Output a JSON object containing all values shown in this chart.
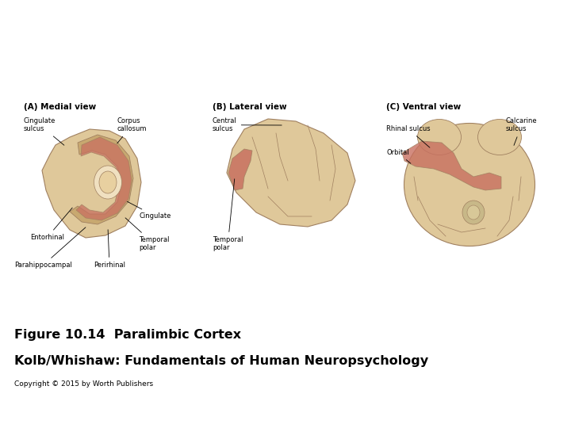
{
  "figure_title": "Figure 10.14  Paralimbic Cortex",
  "author_line": "Kolb/Whishaw: Fundamentals of Human Neuropsychology",
  "copyright_line": "Copyright © 2015 by Worth Publishers",
  "background_color": "#ffffff",
  "title_fontsize": 11.5,
  "author_fontsize": 11.5,
  "copyright_fontsize": 6.5,
  "panel_A_title": "(A) Medial view",
  "panel_B_title": "(B) Lateral view",
  "panel_C_title": "(C) Ventral view",
  "brain_color": "#dfc89a",
  "brain_edge": "#a08060",
  "inner_color": "#c8a870",
  "red_color": "#c87060",
  "red_light": "#d4907a",
  "dark_edge": "#7a6040"
}
